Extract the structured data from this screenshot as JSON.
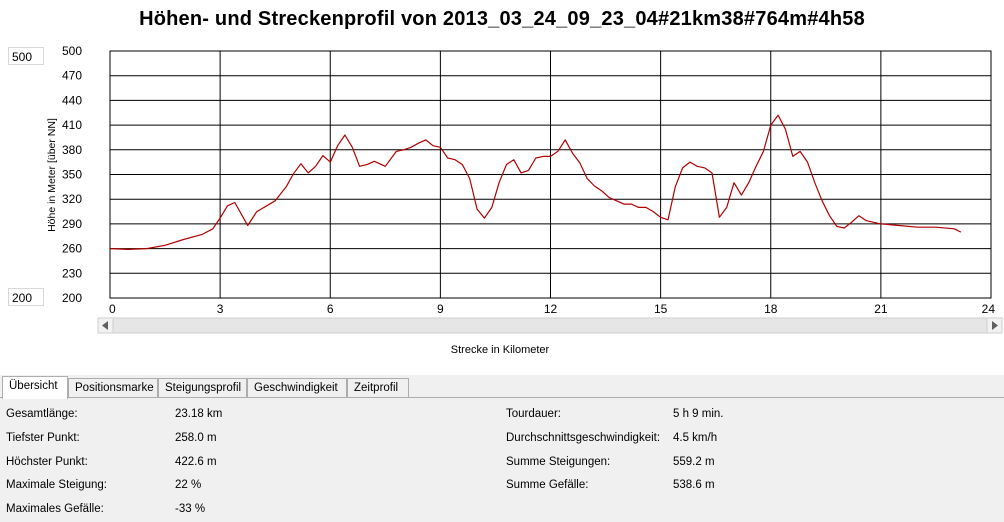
{
  "chart_data": {
    "type": "line",
    "title": "Höhen- und Streckenprofil von 2013_03_24_09_23_04#21km38#764m#4h58",
    "xlabel": "Strecke in Kilometer",
    "ylabel": "Höhe in Meter [über NN]",
    "xlim": [
      0,
      24
    ],
    "ylim": [
      200,
      500
    ],
    "xticks": [
      0,
      3,
      6,
      9,
      12,
      15,
      18,
      21,
      24
    ],
    "yticks": [
      200,
      230,
      260,
      290,
      320,
      350,
      380,
      410,
      440,
      470,
      500
    ],
    "grid": true,
    "color": "#b00000",
    "series": [
      {
        "x": [
          0,
          0.5,
          1.0,
          1.5,
          2.0,
          2.5,
          2.8,
          3.0,
          3.2,
          3.4,
          3.6,
          3.75,
          4.0,
          4.5,
          4.8,
          5.0,
          5.2,
          5.4,
          5.6,
          5.8,
          6.0,
          6.2,
          6.4,
          6.6,
          6.8,
          7.0,
          7.2,
          7.5,
          7.8,
          8.0,
          8.2,
          8.4,
          8.6,
          8.8,
          9.0,
          9.2,
          9.4,
          9.6,
          9.8,
          10.0,
          10.2,
          10.4,
          10.6,
          10.8,
          11.0,
          11.2,
          11.4,
          11.6,
          11.8,
          12.0,
          12.2,
          12.4,
          12.6,
          12.8,
          13.0,
          13.2,
          13.4,
          13.6,
          13.8,
          14.0,
          14.2,
          14.4,
          14.6,
          14.8,
          15.0,
          15.2,
          15.4,
          15.6,
          15.8,
          16.0,
          16.2,
          16.4,
          16.6,
          16.8,
          17.0,
          17.2,
          17.4,
          17.6,
          17.8,
          18.0,
          18.2,
          18.4,
          18.6,
          18.8,
          19.0,
          19.2,
          19.4,
          19.6,
          19.8,
          20.0,
          20.2,
          20.4,
          20.6,
          20.8,
          21.0,
          21.5,
          22.0,
          22.5,
          23.0,
          23.18
        ],
        "y": [
          260,
          259,
          260,
          264,
          271,
          277,
          284,
          297,
          312,
          316,
          300,
          288,
          305,
          318,
          335,
          351,
          363,
          352,
          360,
          373,
          365,
          385,
          398,
          383,
          360,
          362,
          366,
          360,
          378,
          380,
          383,
          388,
          392,
          385,
          383,
          370,
          368,
          362,
          345,
          308,
          297,
          310,
          340,
          362,
          368,
          352,
          355,
          370,
          372,
          372,
          378,
          392,
          376,
          364,
          345,
          336,
          330,
          322,
          318,
          314,
          314,
          310,
          310,
          305,
          298,
          295,
          335,
          358,
          365,
          360,
          358,
          352,
          298,
          310,
          340,
          325,
          340,
          360,
          378,
          410,
          422,
          405,
          372,
          378,
          365,
          340,
          318,
          300,
          287,
          285,
          292,
          300,
          294,
          292,
          290,
          288,
          286,
          286,
          284,
          280
        ]
      }
    ]
  },
  "range_boxes": {
    "max": "500",
    "min": "200"
  },
  "tabs": [
    {
      "label": "Übersicht",
      "active": true
    },
    {
      "label": "Positionsmarke"
    },
    {
      "label": "Steigungsprofil"
    },
    {
      "label": "Geschwindigkeit"
    },
    {
      "label": "Zeitprofil"
    }
  ],
  "stats_left": [
    {
      "label": "Gesamtlänge:",
      "value": "23.18 km"
    },
    {
      "label": "Tiefster Punkt:",
      "value": "258.0 m"
    },
    {
      "label": "Höchster Punkt:",
      "value": "422.6 m"
    },
    {
      "label": "Maximale Steigung:",
      "value": "22 %"
    },
    {
      "label": "Maximales Gefälle:",
      "value": "-33 %"
    }
  ],
  "stats_right": [
    {
      "label": "Tourdauer:",
      "value": "5 h 9 min."
    },
    {
      "label": "Durchschnittsgeschwindigkeit:",
      "value": "4.5 km/h"
    },
    {
      "label": "Summe Steigungen:",
      "value": "559.2 m"
    },
    {
      "label": "Summe Gefälle:",
      "value": "538.6 m"
    }
  ]
}
